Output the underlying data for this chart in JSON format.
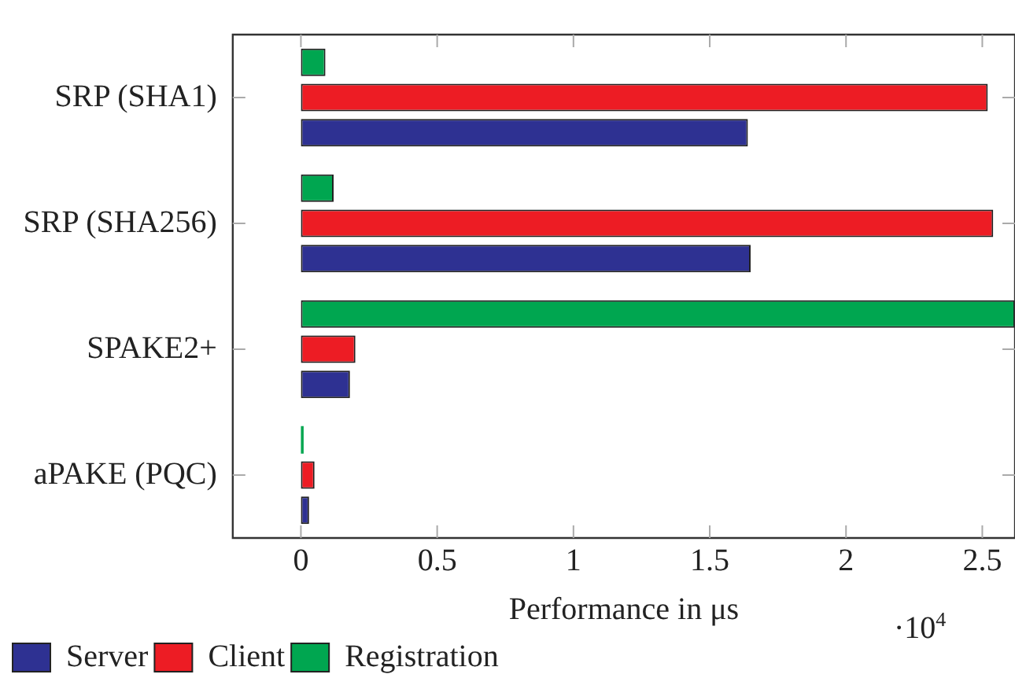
{
  "chart_data": {
    "type": "bar",
    "orientation": "horizontal",
    "categories": [
      "SRP (SHA1)",
      "SRP (SHA256)",
      "SPAKE2+",
      "aPAKE (PQC)"
    ],
    "series": [
      {
        "name": "Server",
        "color": "#2e3192",
        "values": [
          1.64,
          1.65,
          0.18,
          0.03
        ]
      },
      {
        "name": "Client",
        "color": "#ed1c24",
        "values": [
          2.52,
          2.54,
          0.2,
          0.05
        ]
      },
      {
        "name": "Registration",
        "color": "#00a650",
        "values": [
          0.09,
          0.12,
          2.62,
          0.01
        ]
      }
    ],
    "xlabel": "Performance in μs",
    "xlim": [
      -0.25,
      2.62
    ],
    "xticks": [
      0,
      0.5,
      1,
      1.5,
      2,
      2.5
    ],
    "annotations": [
      "·10$^{4}$"
    ],
    "grid": false,
    "legend": "bottom left"
  }
}
